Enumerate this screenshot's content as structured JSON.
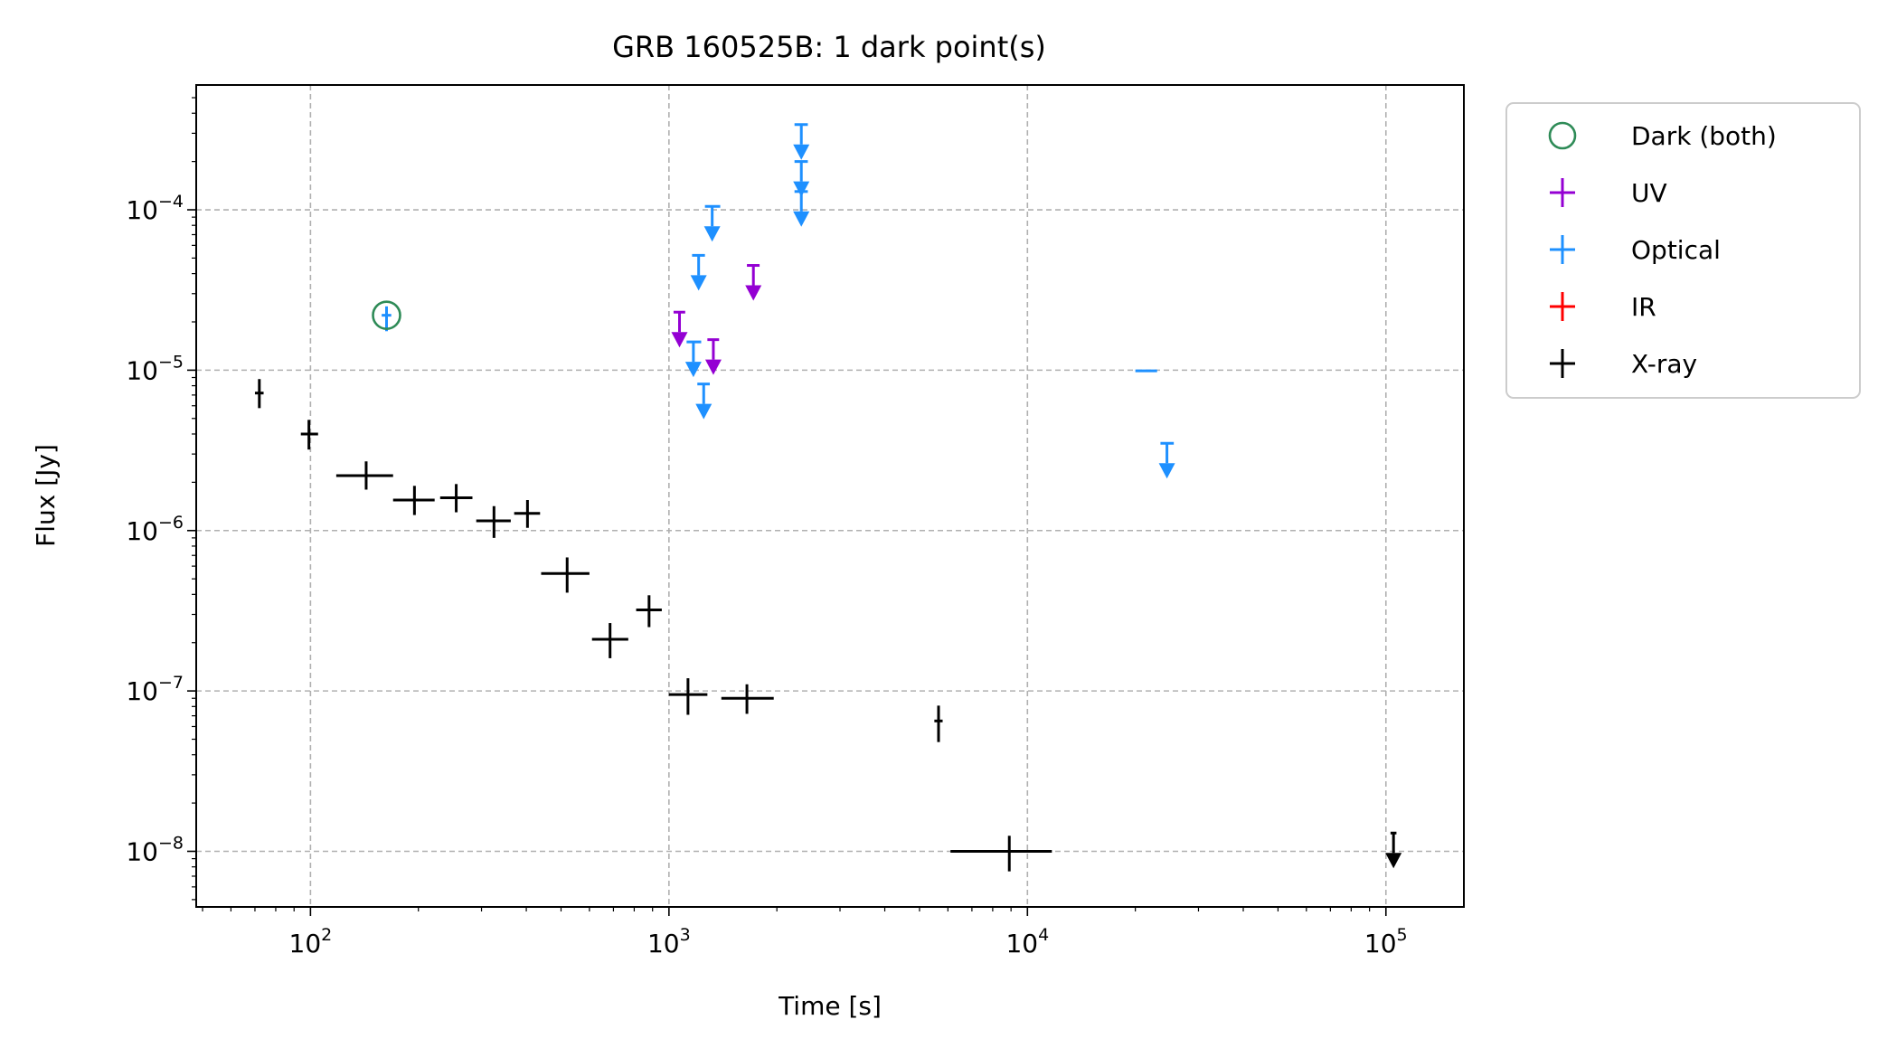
{
  "chart_data": {
    "type": "scatter",
    "title": "GRB 160525B: 1 dark point(s)",
    "xlabel": "Time [s]",
    "ylabel": "Flux [Jy]",
    "xscale": "log",
    "yscale": "log",
    "xlim": [
      48,
      165000
    ],
    "ylim": [
      4.5e-09,
      0.0006
    ],
    "xticks": [
      {
        "value": 100,
        "base": "10",
        "exp": "2"
      },
      {
        "value": 1000,
        "base": "10",
        "exp": "3"
      },
      {
        "value": 10000,
        "base": "10",
        "exp": "4"
      },
      {
        "value": 100000,
        "base": "10",
        "exp": "5"
      }
    ],
    "yticks": [
      {
        "value": 1e-08,
        "base": "10",
        "exp": "−8"
      },
      {
        "value": 1e-07,
        "base": "10",
        "exp": "−7"
      },
      {
        "value": 1e-06,
        "base": "10",
        "exp": "−6"
      },
      {
        "value": 1e-05,
        "base": "10",
        "exp": "−5"
      },
      {
        "value": 0.0001,
        "base": "10",
        "exp": "−4"
      }
    ],
    "grid": true,
    "legend_position": "outside-right-top",
    "colors": {
      "dark": "#2e8b57",
      "uv": "#9400d3",
      "optical": "#1e90ff",
      "ir": "#ff0000",
      "xray": "#000000"
    },
    "legend": [
      {
        "key": "dark",
        "label": "Dark (both)",
        "marker": "circle"
      },
      {
        "key": "uv",
        "label": "UV",
        "marker": "errorbar"
      },
      {
        "key": "optical",
        "label": "Optical",
        "marker": "errorbar"
      },
      {
        "key": "ir",
        "label": "IR",
        "marker": "errorbar"
      },
      {
        "key": "xray",
        "label": "X-ray",
        "marker": "errorbar"
      }
    ],
    "series": [
      {
        "name": "X-ray",
        "key": "xray",
        "points": [
          {
            "x": 72,
            "xlo": 70,
            "xhi": 74,
            "y": 7.2e-06,
            "ylo": 5.8e-06,
            "yhi": 8.8e-06
          },
          {
            "x": 99,
            "xlo": 94,
            "xhi": 105,
            "y": 4e-06,
            "ylo": 3.2e-06,
            "yhi": 4.9e-06
          },
          {
            "x": 143,
            "xlo": 118,
            "xhi": 170,
            "y": 2.2e-06,
            "ylo": 1.8e-06,
            "yhi": 2.7e-06
          },
          {
            "x": 195,
            "xlo": 170,
            "xhi": 222,
            "y": 1.55e-06,
            "ylo": 1.25e-06,
            "yhi": 1.9e-06
          },
          {
            "x": 255,
            "xlo": 230,
            "xhi": 283,
            "y": 1.6e-06,
            "ylo": 1.3e-06,
            "yhi": 1.95e-06
          },
          {
            "x": 325,
            "xlo": 290,
            "xhi": 362,
            "y": 1.15e-06,
            "ylo": 9e-07,
            "yhi": 1.42e-06
          },
          {
            "x": 403,
            "xlo": 370,
            "xhi": 437,
            "y": 1.28e-06,
            "ylo": 1.04e-06,
            "yhi": 1.55e-06
          },
          {
            "x": 520,
            "xlo": 440,
            "xhi": 600,
            "y": 5.4e-07,
            "ylo": 4.1e-07,
            "yhi": 6.8e-07
          },
          {
            "x": 685,
            "xlo": 610,
            "xhi": 770,
            "y": 2.1e-07,
            "ylo": 1.6e-07,
            "yhi": 2.65e-07
          },
          {
            "x": 880,
            "xlo": 810,
            "xhi": 955,
            "y": 3.2e-07,
            "ylo": 2.5e-07,
            "yhi": 3.95e-07
          },
          {
            "x": 1130,
            "xlo": 1000,
            "xhi": 1280,
            "y": 9.5e-08,
            "ylo": 7.1e-08,
            "yhi": 1.2e-07
          },
          {
            "x": 1650,
            "xlo": 1400,
            "xhi": 1960,
            "y": 9e-08,
            "ylo": 7.2e-08,
            "yhi": 1.1e-07
          },
          {
            "x": 5650,
            "xlo": 5500,
            "xhi": 5800,
            "y": 6.5e-08,
            "ylo": 4.8e-08,
            "yhi": 8.1e-08
          },
          {
            "x": 8900,
            "xlo": 6100,
            "xhi": 11700,
            "y": 1e-08,
            "ylo": 7.5e-09,
            "yhi": 1.25e-08
          },
          {
            "x": 105000,
            "xlo": 103000,
            "xhi": 107000,
            "y": 1.3e-08,
            "upper": true
          }
        ]
      },
      {
        "name": "Optical",
        "key": "optical",
        "points": [
          {
            "x": 163,
            "xlo": 158,
            "xhi": 168,
            "y": 2.2e-05,
            "ylo": 1.75e-05,
            "yhi": 2.5e-05
          },
          {
            "x": 1170,
            "xlo": 1120,
            "xhi": 1230,
            "y": 1.5e-05,
            "upper": true
          },
          {
            "x": 1210,
            "xlo": 1160,
            "xhi": 1260,
            "y": 5.2e-05,
            "upper": true
          },
          {
            "x": 1250,
            "xlo": 1200,
            "xhi": 1300,
            "y": 8.2e-06,
            "upper": true
          },
          {
            "x": 1320,
            "xlo": 1260,
            "xhi": 1390,
            "y": 0.000105,
            "upper": true
          },
          {
            "x": 2340,
            "xlo": 2240,
            "xhi": 2440,
            "y": 0.00034,
            "upper": true
          },
          {
            "x": 2340,
            "xlo": 2240,
            "xhi": 2440,
            "y": 0.0002,
            "upper": true
          },
          {
            "x": 2340,
            "xlo": 2240,
            "xhi": 2440,
            "y": 0.00013,
            "upper": true
          },
          {
            "x": 21500,
            "xlo": 20000,
            "xhi": 23000,
            "y": 9.9e-06
          },
          {
            "x": 24500,
            "xlo": 23500,
            "xhi": 25600,
            "y": 3.5e-06,
            "upper": true
          }
        ]
      },
      {
        "name": "UV",
        "key": "uv",
        "points": [
          {
            "x": 1070,
            "xlo": 1030,
            "xhi": 1110,
            "y": 2.3e-05,
            "upper": true
          },
          {
            "x": 1330,
            "xlo": 1280,
            "xhi": 1380,
            "y": 1.55e-05,
            "upper": true
          },
          {
            "x": 1720,
            "xlo": 1650,
            "xhi": 1790,
            "y": 4.5e-05,
            "upper": true
          }
        ]
      }
    ],
    "dark_points": [
      {
        "x": 163,
        "y": 2.2e-05
      }
    ]
  }
}
